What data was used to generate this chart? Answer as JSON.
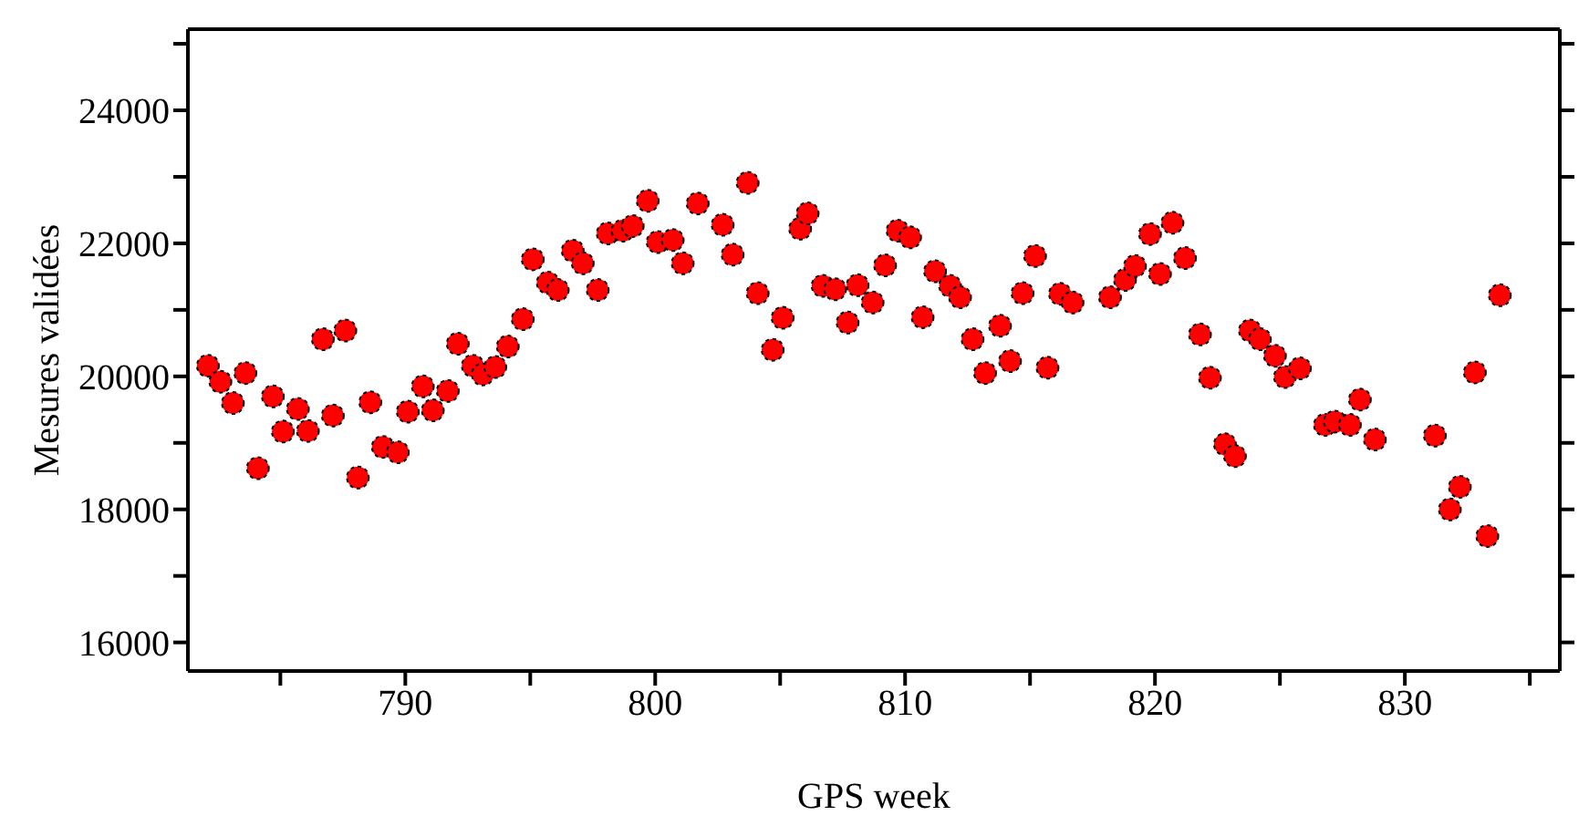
{
  "chart_data": {
    "type": "scatter",
    "xlabel": "GPS week",
    "ylabel": "Mesures validées",
    "marker": "circle",
    "legend": false,
    "xlim": [
      781.3,
      836.2
    ],
    "xticks": [
      {
        "value": 785,
        "label": null
      },
      790,
      {
        "value": 795,
        "label": null
      },
      800,
      {
        "value": 805,
        "label": null
      },
      810,
      {
        "value": 815,
        "label": null
      },
      820,
      {
        "value": 825,
        "label": null
      },
      830,
      {
        "value": 835,
        "label": null
      }
    ],
    "ylim": [
      15570,
      25220
    ],
    "yticks": [
      16000,
      {
        "value": 17000,
        "label": null
      },
      18000,
      {
        "value": 19000,
        "label": null
      },
      20000,
      {
        "value": 21000,
        "label": null
      },
      22000,
      {
        "value": 23000,
        "label": null
      },
      24000,
      {
        "value": 25000,
        "label": null
      }
    ],
    "series": [
      {
        "color": "#ff0000",
        "x": [
          782.1,
          782.6,
          783.1,
          783.6,
          784.1,
          784.7,
          785.1,
          785.7,
          786.1,
          786.7,
          787.1,
          787.6,
          788.1,
          788.6,
          789.1,
          789.7,
          790.1,
          790.7,
          791.1,
          791.7,
          792.1,
          792.7,
          793.1,
          793.6,
          794.1,
          794.7,
          795.1,
          795.7,
          796.1,
          796.7,
          797.1,
          797.7,
          798.1,
          798.7,
          799.1,
          799.7,
          800.1,
          800.7,
          801.1,
          801.7,
          802.7,
          803.1,
          803.7,
          804.1,
          804.7,
          805.1,
          805.8,
          806.1,
          806.7,
          807.2,
          807.7,
          808.1,
          808.7,
          809.2,
          809.7,
          810.2,
          810.7,
          811.2,
          811.8,
          812.2,
          812.7,
          813.2,
          813.8,
          814.2,
          814.7,
          815.2,
          815.7,
          816.2,
          816.7,
          818.2,
          818.8,
          819.2,
          819.8,
          820.2,
          820.7,
          821.2,
          821.8,
          822.2,
          822.8,
          823.2,
          823.8,
          824.2,
          824.8,
          825.2,
          825.8,
          826.8,
          827.2,
          827.8,
          828.2,
          828.8,
          831.2,
          831.8,
          832.2,
          832.8,
          833.3,
          833.8
        ],
        "values": [
          20160,
          19920,
          19600,
          20050,
          18620,
          19700,
          19170,
          19510,
          19180,
          20560,
          19410,
          20690,
          18480,
          19610,
          18940,
          18860,
          19470,
          19850,
          19490,
          19780,
          20490,
          20160,
          20030,
          20140,
          20450,
          20860,
          21760,
          21410,
          21300,
          21890,
          21700,
          21300,
          22150,
          22190,
          22260,
          22640,
          22020,
          22050,
          21700,
          22600,
          22280,
          21830,
          22910,
          21250,
          20400,
          20880,
          22220,
          22450,
          21360,
          21310,
          20810,
          21370,
          21110,
          21670,
          22190,
          22090,
          20890,
          21580,
          21360,
          21190,
          20560,
          20050,
          20760,
          20230,
          21250,
          21810,
          20130,
          21240,
          21110,
          21190,
          21450,
          21660,
          22140,
          21540,
          22310,
          21780,
          20630,
          19980,
          18980,
          18800,
          20690,
          20560,
          20310,
          19990,
          20120,
          19270,
          19320,
          19270,
          19650,
          19050,
          19110,
          18000,
          18340,
          20060,
          17600,
          21220
        ]
      }
    ]
  }
}
